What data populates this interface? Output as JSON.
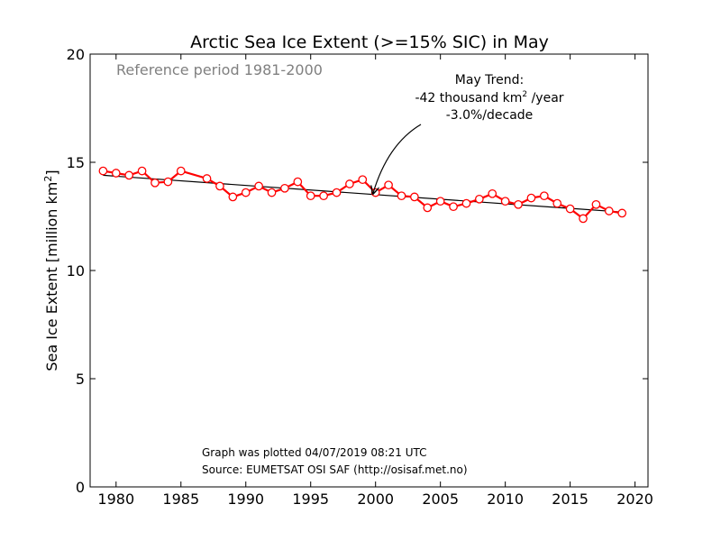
{
  "chart_data": {
    "type": "line",
    "title": "Arctic Sea Ice Extent (>=15% SIC) in May",
    "subtitle": "Reference period 1981-2000",
    "xlabel": "",
    "ylabel": "Sea Ice Extent [million km",
    "ylabel_sup": "2",
    "ylabel_end": "]",
    "xlim": [
      1978,
      2021
    ],
    "ylim": [
      0,
      20
    ],
    "xticks": [
      1980,
      1985,
      1990,
      1995,
      2000,
      2005,
      2010,
      2015,
      2020
    ],
    "yticks": [
      0,
      5,
      10,
      15,
      20
    ],
    "grid": false,
    "series": [
      {
        "color": "#ff0000",
        "x": [
          1979,
          1980,
          1981,
          1982,
          1983,
          1984,
          1985,
          1987,
          1988,
          1989,
          1990,
          1991,
          1992,
          1993,
          1994,
          1995,
          1996,
          1997,
          1998,
          1999,
          2000,
          2001,
          2002,
          2003,
          2004,
          2005,
          2006,
          2007,
          2008,
          2009,
          2010,
          2011,
          2012,
          2013,
          2014,
          2015,
          2016,
          2017,
          2018,
          2019
        ],
        "y": [
          14.6,
          14.5,
          14.4,
          14.6,
          14.05,
          14.1,
          14.6,
          14.25,
          13.9,
          13.4,
          13.6,
          13.9,
          13.6,
          13.8,
          14.1,
          13.45,
          13.45,
          13.6,
          14.0,
          14.2,
          13.6,
          13.95,
          13.45,
          13.4,
          12.9,
          13.2,
          12.95,
          13.1,
          13.3,
          13.55,
          13.2,
          13.05,
          13.35,
          13.45,
          13.1,
          12.85,
          12.4,
          13.05,
          12.75,
          12.65
        ]
      }
    ],
    "trend": {
      "color": "#000000",
      "x": [
        1979,
        2019
      ],
      "y": [
        14.4,
        12.7
      ]
    },
    "annotation": {
      "line1": "May Trend:",
      "line2a": "-42 thousand km",
      "line2sup": "2",
      "line2b": " /year",
      "line3": "-3.0%/decade",
      "arrow_to": [
        1999.8,
        13.55
      ]
    },
    "footnote": {
      "line1": "Graph was plotted 04/07/2019 08:21 UTC",
      "line2": "Source: EUMETSAT OSI SAF (http://osisaf.met.no)"
    }
  }
}
